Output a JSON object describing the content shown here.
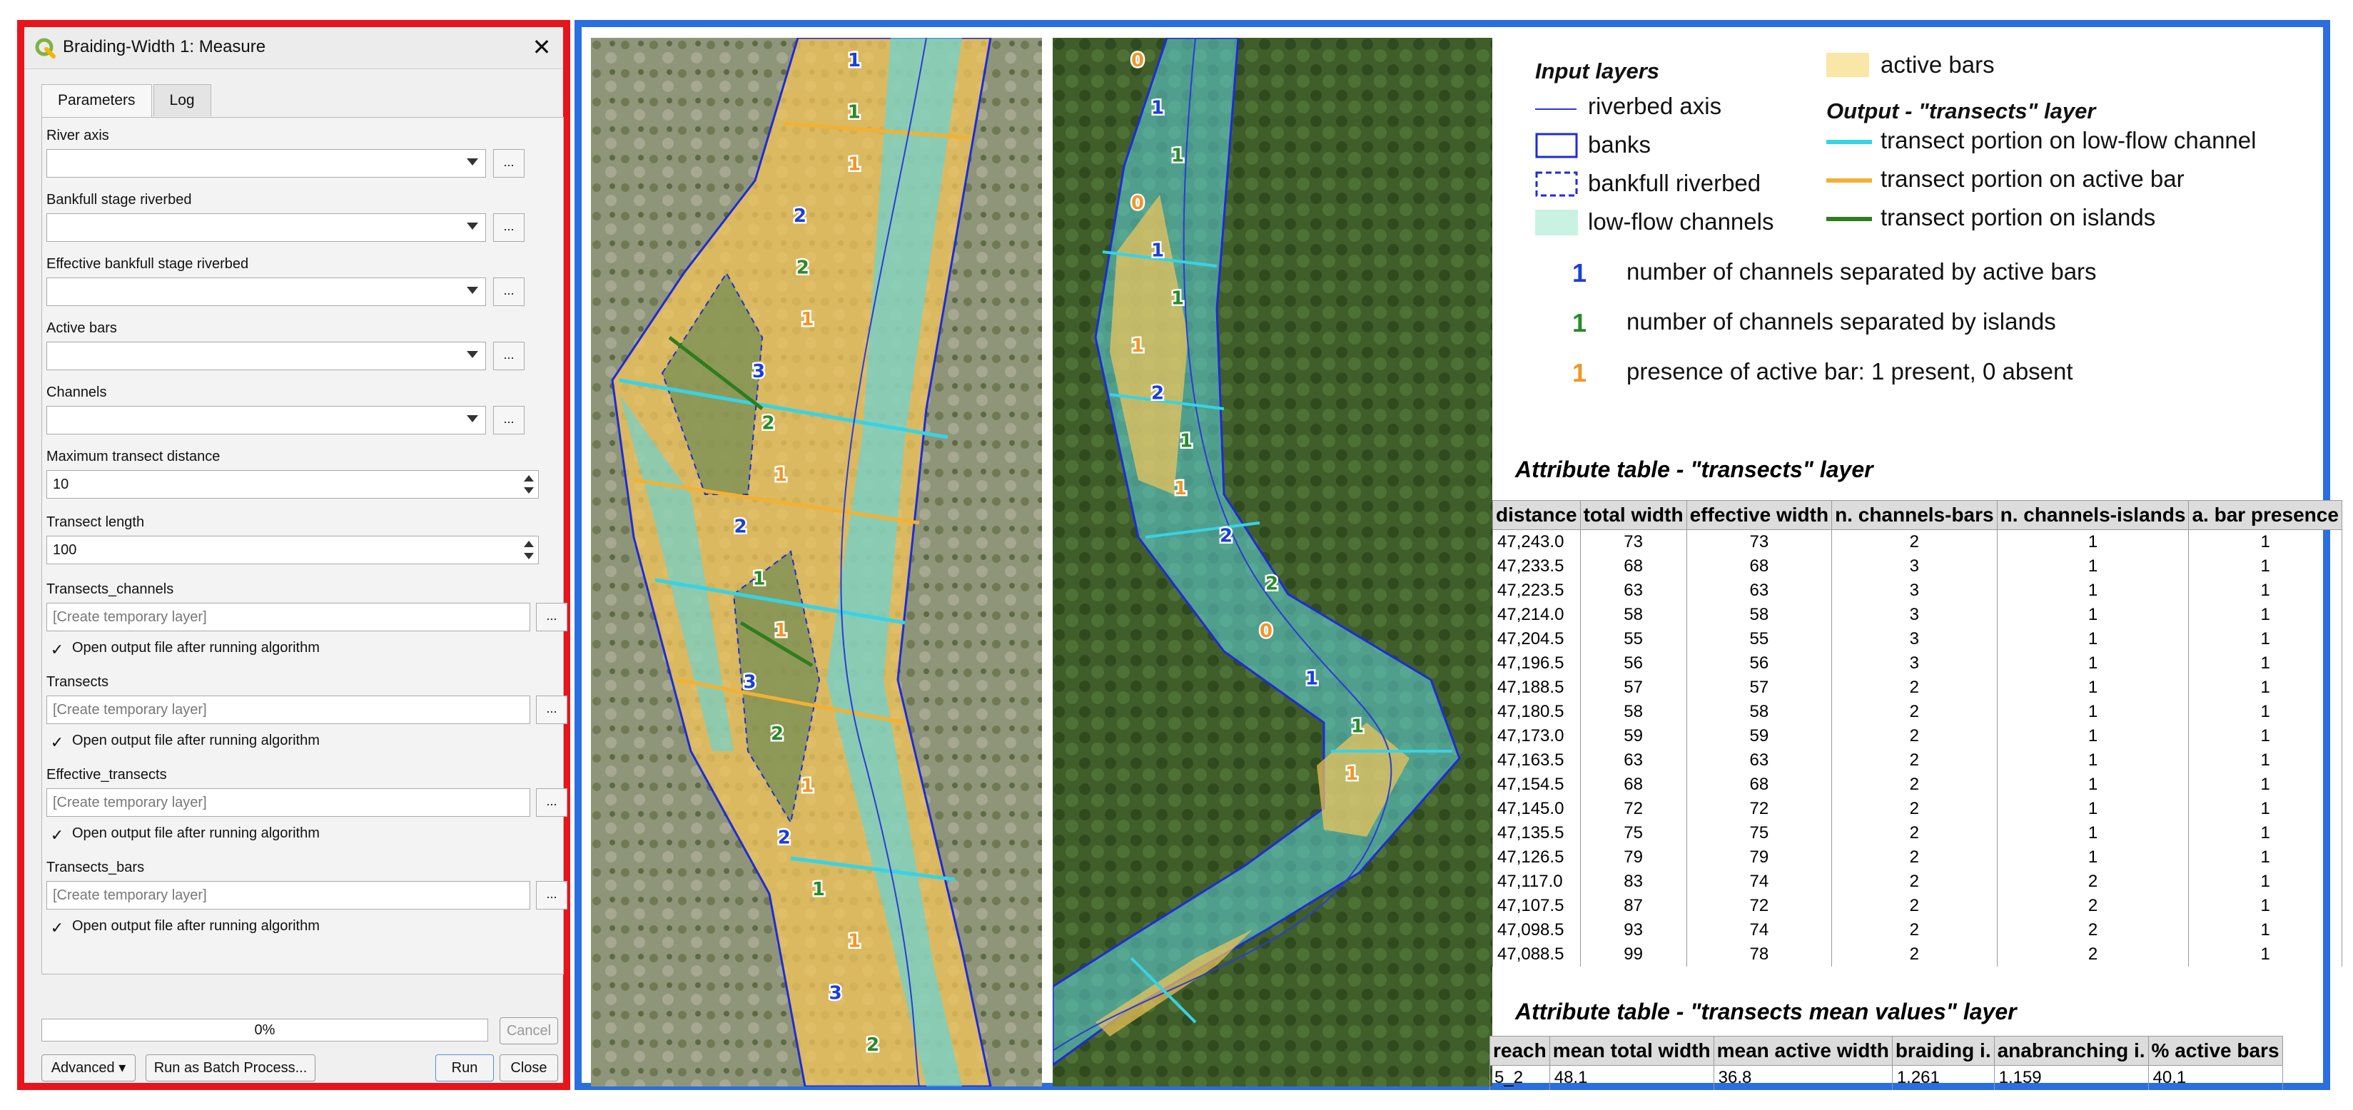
{
  "dialog": {
    "title": "Braiding-Width 1: Measure",
    "tabs": [
      {
        "label": "Parameters"
      },
      {
        "label": "Log"
      }
    ],
    "params": {
      "river_axis": "River axis",
      "bankfull": "Bankfull stage riverbed",
      "effective_bankfull": "Effective bankfull stage riverbed",
      "active_bars": "Active bars",
      "channels": "Channels",
      "max_transect_distance": "Maximum transect distance",
      "max_transect_distance_value": "10",
      "transect_length": "Transect length",
      "transect_length_value": "100",
      "transects_channels": "Transects_channels",
      "transects": "Transects",
      "effective_transects": "Effective_transects",
      "transects_bars": "Transects_bars",
      "temp_placeholder": "[Create temporary layer]",
      "open_output": "Open output file after running algorithm",
      "check_mark": "✓",
      "dots": "..."
    },
    "progress": "0%",
    "buttons": {
      "cancel": "Cancel",
      "advanced": "Advanced",
      "batch": "Run as Batch Process...",
      "run": "Run",
      "close": "Close"
    }
  },
  "legend": {
    "input_heading": "Input layers",
    "output_heading": "Output -  \"transects\" layer",
    "riverbed_axis": "riverbed axis",
    "banks": "banks",
    "bankfull_riverbed": "bankfull riverbed",
    "low_flow_channels": "low-flow channels",
    "active_bars": "active bars",
    "transect_low_flow": "transect portion on low-flow channel",
    "transect_active_bar": "transect portion on active bar",
    "transect_islands": "transect portion on islands",
    "num_bars_sym": "1",
    "num_bars_text": "number of channels separated by active bars",
    "num_islands_sym": "1",
    "num_islands_text": "number of channels separated by islands",
    "presence_sym": "1",
    "presence_text": "presence of active bar: 1 present, 0 absent",
    "colors": {
      "axis": "#2b3bd9",
      "banks": "#1f2bd6",
      "low_flow": "#c9f2e3",
      "active_bars": "#f8e7a6",
      "cyan": "#37d3e6",
      "orange": "#f2b134",
      "green": "#2e7d1f",
      "blue_num": "#1a3fd8",
      "green_num": "#2a8a2a",
      "orange_num": "#f0962a"
    }
  },
  "transects_table": {
    "title": "Attribute table - \"transects\" layer",
    "headers": [
      "distance",
      "total width",
      "effective width",
      "n. channels-bars",
      "n. channels-islands",
      "a. bar presence"
    ],
    "rows": [
      [
        "47,243.0",
        "73",
        "73",
        "2",
        "1",
        "1"
      ],
      [
        "47,233.5",
        "68",
        "68",
        "3",
        "1",
        "1"
      ],
      [
        "47,223.5",
        "63",
        "63",
        "3",
        "1",
        "1"
      ],
      [
        "47,214.0",
        "58",
        "58",
        "3",
        "1",
        "1"
      ],
      [
        "47,204.5",
        "55",
        "55",
        "3",
        "1",
        "1"
      ],
      [
        "47,196.5",
        "56",
        "56",
        "3",
        "1",
        "1"
      ],
      [
        "47,188.5",
        "57",
        "57",
        "2",
        "1",
        "1"
      ],
      [
        "47,180.5",
        "58",
        "58",
        "2",
        "1",
        "1"
      ],
      [
        "47,173.0",
        "59",
        "59",
        "2",
        "1",
        "1"
      ],
      [
        "47,163.5",
        "63",
        "63",
        "2",
        "1",
        "1"
      ],
      [
        "47,154.5",
        "68",
        "68",
        "2",
        "1",
        "1"
      ],
      [
        "47,145.0",
        "72",
        "72",
        "2",
        "1",
        "1"
      ],
      [
        "47,135.5",
        "75",
        "75",
        "2",
        "1",
        "1"
      ],
      [
        "47,126.5",
        "79",
        "79",
        "2",
        "1",
        "1"
      ],
      [
        "47,117.0",
        "83",
        "74",
        "2",
        "2",
        "1"
      ],
      [
        "47,107.5",
        "87",
        "72",
        "2",
        "2",
        "1"
      ],
      [
        "47,098.5",
        "93",
        "74",
        "2",
        "2",
        "1"
      ],
      [
        "47,088.5",
        "99",
        "78",
        "2",
        "2",
        "1"
      ]
    ]
  },
  "mean_table": {
    "title": "Attribute table - \"transects mean values\" layer",
    "headers": [
      "reach",
      "mean total width",
      "mean active width",
      "braiding i.",
      "anabranching i.",
      "% active bars"
    ],
    "rows": [
      [
        "5_2",
        "48.1",
        "36.8",
        "1.261",
        "1.159",
        "40.1"
      ]
    ]
  },
  "map_labels": {
    "left_numbers": [
      {
        "t": "1",
        "c": "blue"
      },
      {
        "t": "1",
        "c": "green"
      },
      {
        "t": "1",
        "c": "orange"
      },
      {
        "t": "2",
        "c": "blue"
      },
      {
        "t": "2",
        "c": "green"
      },
      {
        "t": "1",
        "c": "orange"
      },
      {
        "t": "3",
        "c": "blue"
      },
      {
        "t": "2",
        "c": "green"
      },
      {
        "t": "1",
        "c": "orange"
      },
      {
        "t": "2",
        "c": "blue"
      },
      {
        "t": "1",
        "c": "green"
      },
      {
        "t": "1",
        "c": "orange"
      },
      {
        "t": "3",
        "c": "blue"
      },
      {
        "t": "2",
        "c": "green"
      },
      {
        "t": "1",
        "c": "orange"
      },
      {
        "t": "2",
        "c": "blue"
      },
      {
        "t": "1",
        "c": "green"
      },
      {
        "t": "1",
        "c": "orange"
      },
      {
        "t": "3",
        "c": "blue"
      },
      {
        "t": "2",
        "c": "green"
      }
    ],
    "right_numbers": [
      {
        "t": "0",
        "c": "orange"
      },
      {
        "t": "1",
        "c": "blue"
      },
      {
        "t": "1",
        "c": "green"
      },
      {
        "t": "0",
        "c": "orange"
      },
      {
        "t": "1",
        "c": "blue"
      },
      {
        "t": "1",
        "c": "green"
      },
      {
        "t": "1",
        "c": "orange"
      },
      {
        "t": "2",
        "c": "blue"
      },
      {
        "t": "1",
        "c": "green"
      },
      {
        "t": "1",
        "c": "orange"
      },
      {
        "t": "2",
        "c": "blue"
      },
      {
        "t": "2",
        "c": "green"
      },
      {
        "t": "0",
        "c": "orange"
      },
      {
        "t": "1",
        "c": "blue"
      },
      {
        "t": "1",
        "c": "green"
      },
      {
        "t": "1",
        "c": "orange"
      }
    ]
  }
}
